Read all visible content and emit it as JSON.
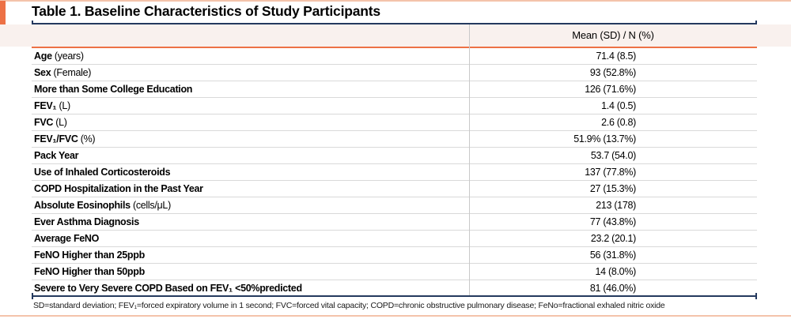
{
  "page": {
    "title": "Table 1. Baseline Characteristics of Study Participants"
  },
  "table": {
    "value_column_header": "Mean (SD) / N (%)",
    "rows": [
      {
        "bold": "Age",
        "rest": " (years)",
        "value": "71.4 (8.5)"
      },
      {
        "bold": "Sex",
        "rest": " (Female)",
        "value": "93 (52.8%)"
      },
      {
        "bold": "More than Some College Education",
        "rest": "",
        "value": "126 (71.6%)"
      },
      {
        "bold": "FEV₁",
        "rest": " (L)",
        "value": "1.4 (0.5)"
      },
      {
        "bold": "FVC",
        "rest": " (L)",
        "value": "2.6 (0.8)"
      },
      {
        "bold": "FEV₁/FVC",
        "rest": " (%)",
        "value": "51.9% (13.7%)"
      },
      {
        "bold": "Pack Year",
        "rest": "",
        "value": "53.7 (54.0)"
      },
      {
        "bold": "Use of Inhaled Corticosteroids",
        "rest": "",
        "value": "137 (77.8%)"
      },
      {
        "bold": "COPD Hospitalization in the Past Year",
        "rest": "",
        "value": "27 (15.3%)"
      },
      {
        "bold": "Absolute Eosinophils",
        "rest": " (cells/μL)",
        "value": "213 (178)"
      },
      {
        "bold": "Ever Asthma Diagnosis",
        "rest": "",
        "value": "77 (43.8%)"
      },
      {
        "bold": "Average FeNO",
        "rest": "",
        "value": "23.2 (20.1)"
      },
      {
        "bold": "FeNO Higher than 25ppb",
        "rest": "",
        "value": "56 (31.8%)"
      },
      {
        "bold": "FeNO Higher than 50ppb",
        "rest": "",
        "value": "14 (8.0%)"
      },
      {
        "bold": "Severe to Very Severe COPD Based on FEV₁ <50%predicted",
        "rest": "",
        "value": "81 (46.0%)"
      }
    ]
  },
  "footnote": "SD=standard deviation; FEV₁=forced expiratory volume in 1 second; FVC=forced vital capacity; COPD=chronic obstructive pulmonary disease; FeNo=fractional exhaled nitric oxide",
  "colors": {
    "accent_orange": "#ED7145",
    "rule_navy": "#24395E",
    "header_band_bg": "#F9F1EE",
    "frame_peach": "#F4C3AB",
    "row_separator": "#D9D9D9"
  }
}
